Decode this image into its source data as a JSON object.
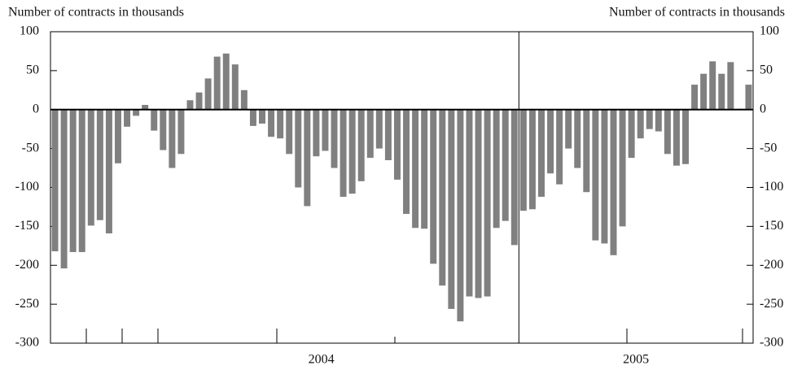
{
  "chart_data": {
    "type": "bar",
    "y_label": "Number of contracts in thousands",
    "y2_label": "Number of contracts in thousands",
    "periods": [
      "2004",
      "2005"
    ],
    "categories": [
      null,
      null,
      null,
      null,
      null,
      null,
      null,
      null,
      null,
      null,
      null,
      null,
      null,
      null,
      null,
      null,
      null,
      null,
      null,
      null,
      null,
      null,
      null,
      null,
      null,
      null,
      null,
      null,
      null,
      null,
      null,
      null,
      null,
      null,
      null,
      null,
      null,
      null,
      null,
      null,
      null,
      null,
      null,
      null,
      null,
      null,
      null,
      null,
      null,
      null,
      null,
      null,
      null,
      null,
      null,
      null,
      null,
      null,
      null,
      null,
      null,
      null,
      null,
      null,
      null,
      null,
      null,
      null,
      null,
      null,
      null,
      null,
      null,
      null,
      null,
      null,
      null,
      null
    ],
    "values": [
      -182,
      -204,
      -183,
      -183,
      -149,
      -142,
      -159,
      -69,
      -22,
      -8,
      6,
      -27,
      -52,
      -75,
      -57,
      12,
      22,
      40,
      68,
      72,
      58,
      25,
      -21,
      -18,
      -35,
      -37,
      -57,
      -100,
      -124,
      -60,
      -53,
      -75,
      -112,
      -108,
      -92,
      -62,
      -50,
      -65,
      -90,
      -134,
      -152,
      -153,
      -198,
      -226,
      -256,
      -272,
      -240,
      -242,
      -240,
      -152,
      -143,
      -174,
      -130,
      -128,
      -112,
      -82,
      -96,
      -50,
      -75,
      -106,
      -168,
      -172,
      -187,
      -150,
      -62,
      -37,
      -25,
      -28,
      -57,
      -72,
      -70,
      32,
      46,
      62,
      46,
      61,
      1,
      32
    ],
    "color": "#808080",
    "ylim": [
      -300,
      100
    ],
    "yticks": [
      100,
      50,
      0,
      -50,
      -100,
      -150,
      -200,
      -250,
      -300
    ],
    "y2lim": [
      -300,
      100
    ],
    "y2ticks": [
      100,
      50,
      0,
      -50,
      -100,
      -150,
      -200,
      -250,
      -300
    ]
  }
}
